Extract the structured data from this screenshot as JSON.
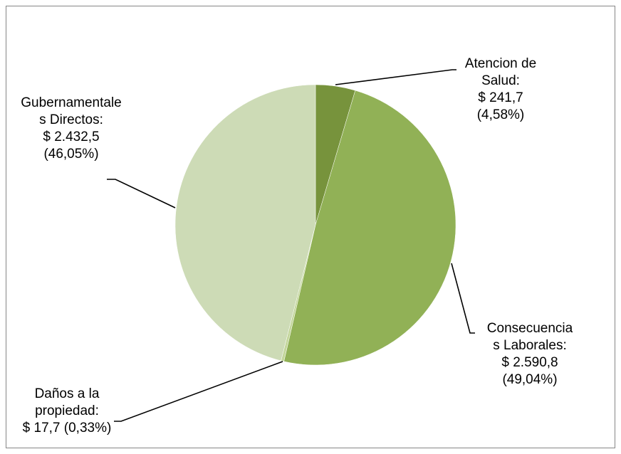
{
  "chart_data": {
    "type": "pie",
    "categories": [
      "Atencion de Salud:",
      "Consecuencias Laborales:",
      "Daños a la propiedad:",
      "Gubernamentales Directos:"
    ],
    "values": [
      241.7,
      2590.8,
      17.7,
      2432.5
    ],
    "value_labels": [
      "$ 241,7 (4,58%)",
      "$ 2.590,8 (49,04%)",
      "$ 17,7 (0,33%)",
      "$ 2.432,5 (46,05%)"
    ],
    "colors": [
      "#77933c",
      "#91b156",
      "#c3d69b",
      "#cddbb6"
    ]
  }
}
